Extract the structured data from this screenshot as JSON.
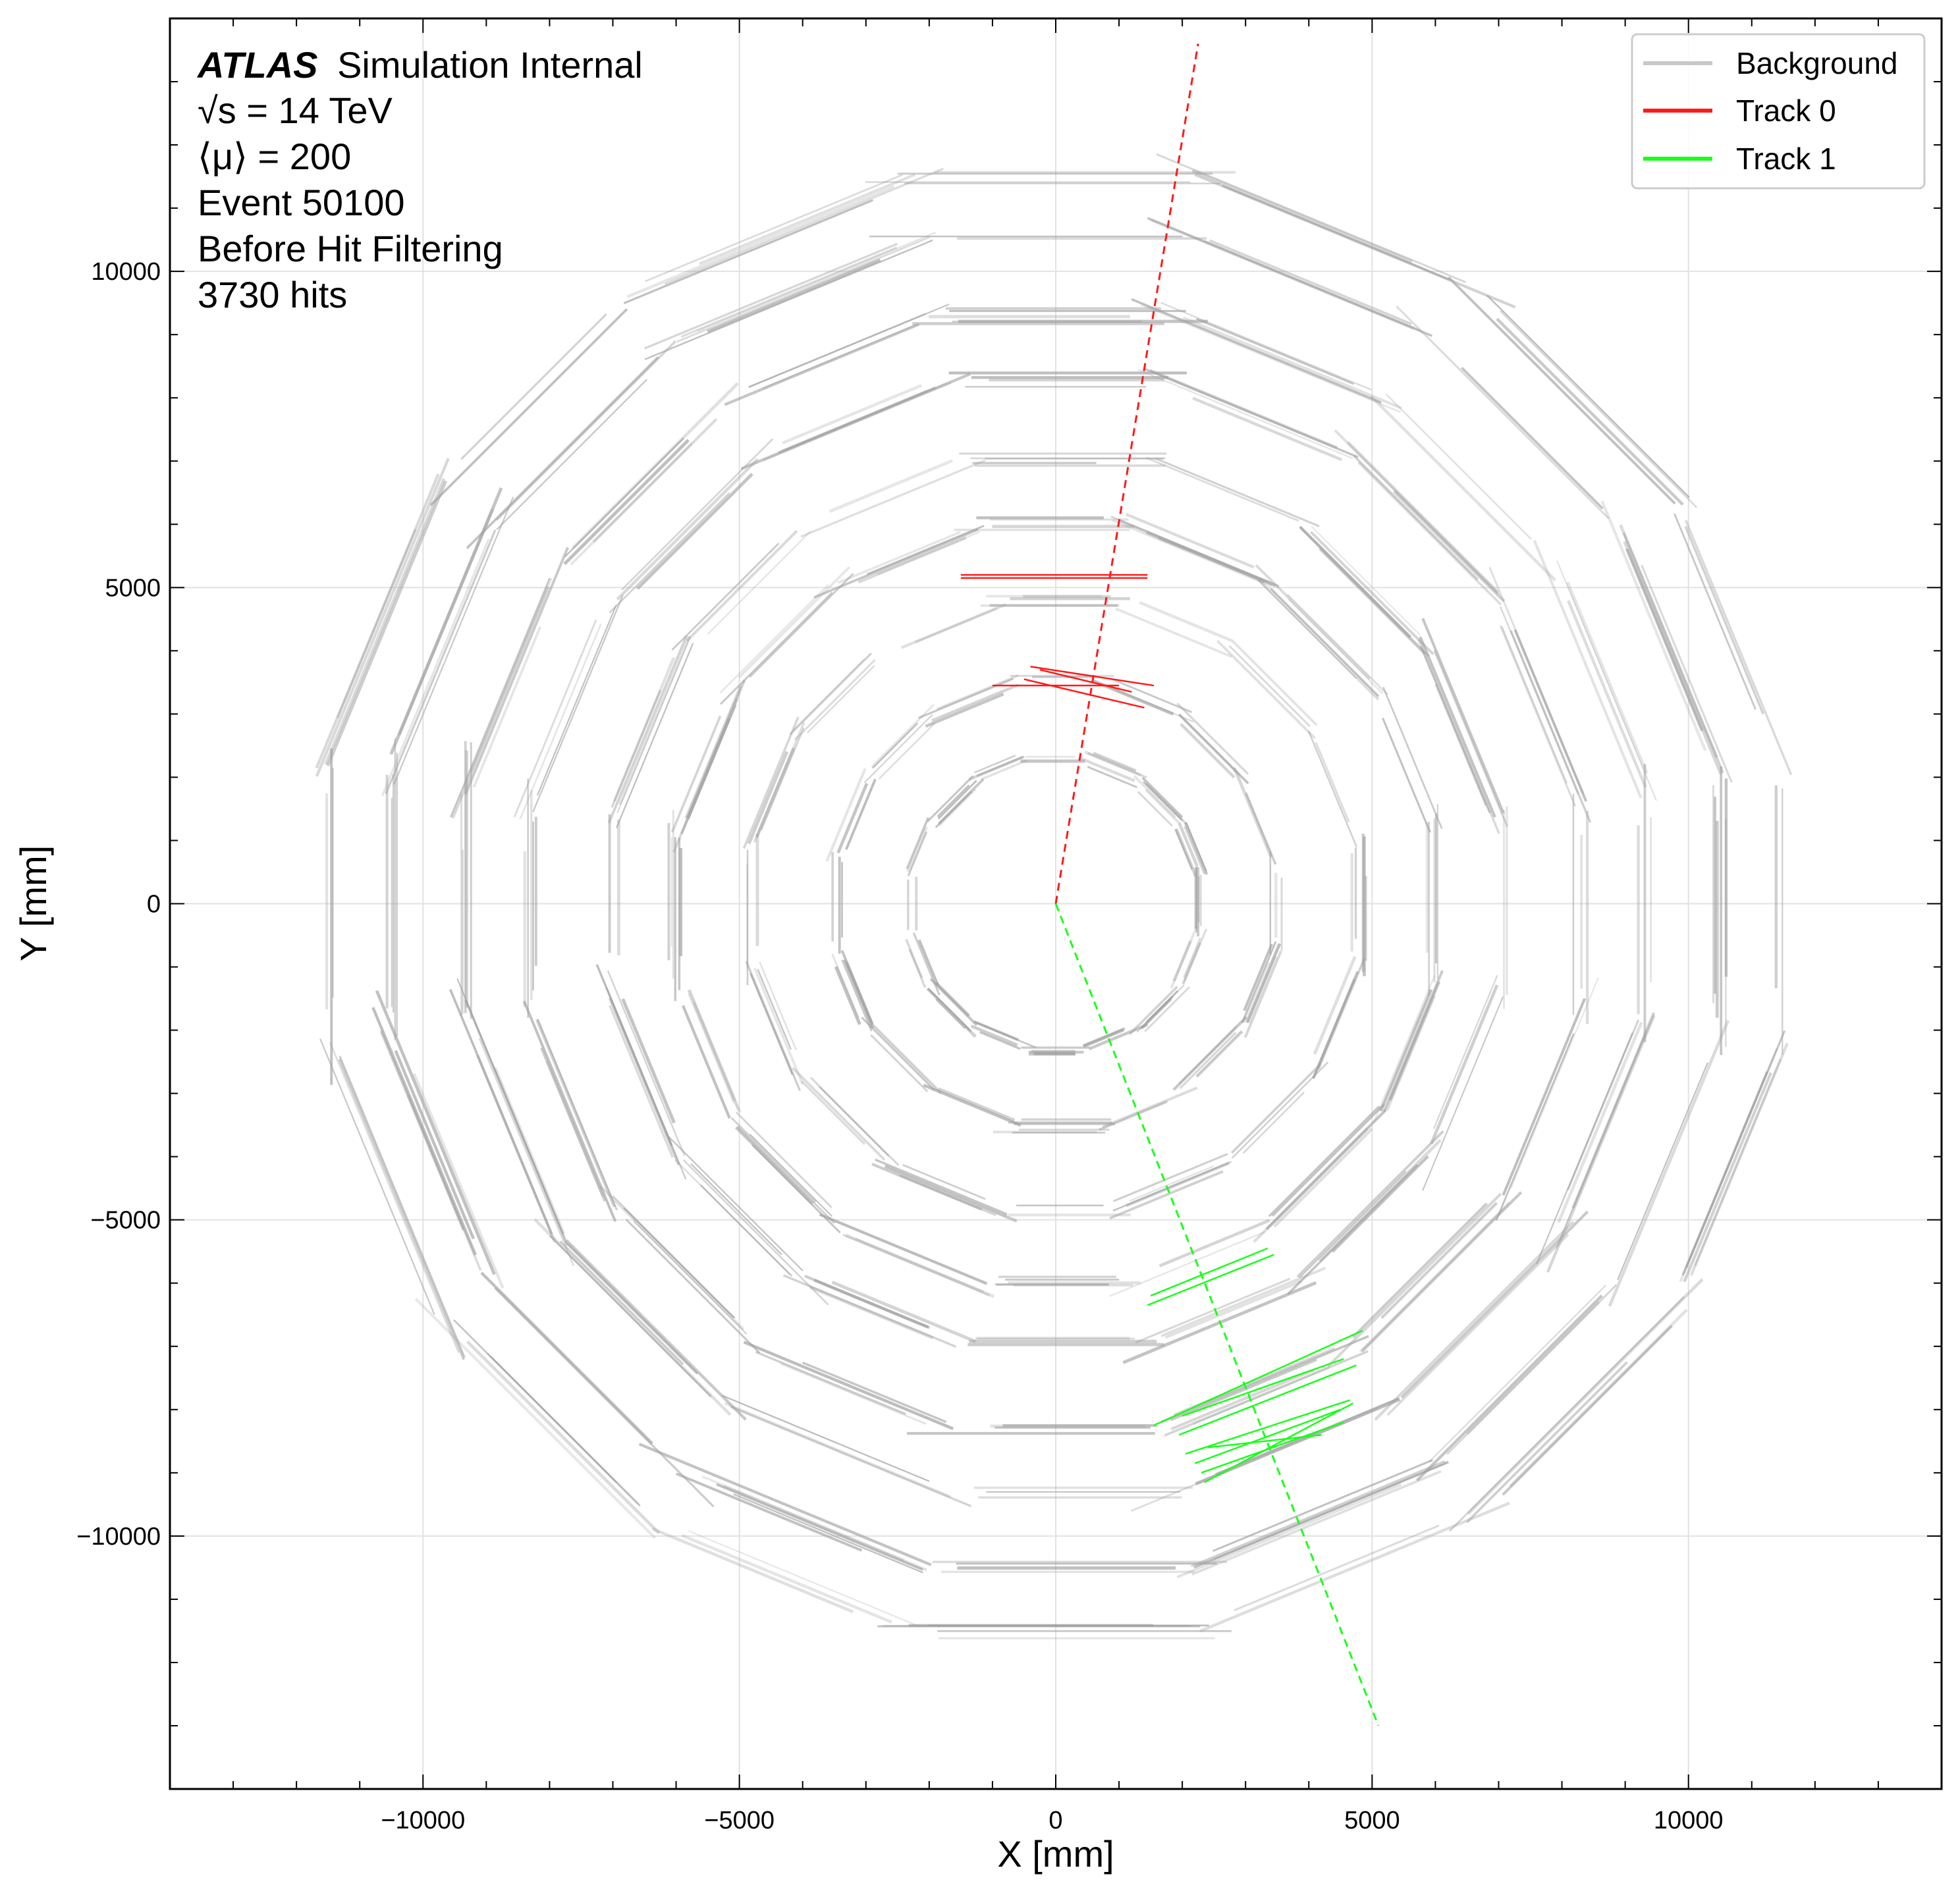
{
  "chart_data": {
    "type": "scatter",
    "title": "",
    "xlabel": "X [mm]",
    "ylabel": "Y [mm]",
    "xlim": [
      -14000,
      14000
    ],
    "ylim": [
      -14000,
      14000
    ],
    "grid": true,
    "legend_position": "top-right",
    "xticks": [
      -10000,
      -5000,
      0,
      5000,
      10000
    ],
    "yticks": [
      -10000,
      -5000,
      0,
      5000,
      10000
    ],
    "xtick_labels": [
      "−10000",
      "−5000",
      "0",
      "5000",
      "10000"
    ],
    "ytick_labels": [
      "−10000",
      "−5000",
      "0",
      "5000",
      "10000"
    ],
    "annotations": {
      "experiment": "ATLAS",
      "status": "Simulation Internal",
      "energy": "√s = 14 TeV",
      "pileup": "⟨μ⟩ = 200",
      "event": "Event 50100",
      "stage": "Before Hit Filtering",
      "hits": "3730 hits"
    },
    "legend": [
      {
        "label": "Background",
        "color": "#c8c8c8"
      },
      {
        "label": "Track 0",
        "color": "#ff1a1a"
      },
      {
        "label": "Track 1",
        "color": "#1aff1a"
      }
    ],
    "background_geometry": {
      "layer_radii": [
        2300,
        3500,
        4800,
        6000,
        7000,
        8300,
        9300,
        10500,
        11500
      ],
      "polygon_sides": 16,
      "gray_color": "#a0a0a0"
    },
    "series": [
      {
        "name": "Track 0",
        "color": "#ff1a1a",
        "trajectory": {
          "x": [
            0,
            2250
          ],
          "y": [
            0,
            13600
          ]
        },
        "hits": [
          {
            "x1": -1500,
            "y1": 5200,
            "x2": 1450,
            "y2": 5200
          },
          {
            "x1": -1500,
            "y1": 5150,
            "x2": 1450,
            "y2": 5150
          },
          {
            "x1": -1000,
            "y1": 3450,
            "x2": 1000,
            "y2": 3450
          },
          {
            "x1": -400,
            "y1": 3750,
            "x2": 1550,
            "y2": 3450
          },
          {
            "x1": -500,
            "y1": 3550,
            "x2": 1400,
            "y2": 3100
          },
          {
            "x1": -250,
            "y1": 3700,
            "x2": 1200,
            "y2": 3350
          }
        ]
      },
      {
        "name": "Track 1",
        "color": "#1aff1a",
        "trajectory": {
          "x": [
            0,
            5100
          ],
          "y": [
            0,
            -13000
          ]
        },
        "hits": [
          {
            "x1": 1450,
            "y1": -6350,
            "x2": 3450,
            "y2": -5550
          },
          {
            "x1": 1500,
            "y1": -6200,
            "x2": 3350,
            "y2": -5450
          },
          {
            "x1": 1550,
            "y1": -8250,
            "x2": 4850,
            "y2": -6750
          },
          {
            "x1": 2000,
            "y1": -8100,
            "x2": 4550,
            "y2": -7200
          },
          {
            "x1": 1950,
            "y1": -8400,
            "x2": 4750,
            "y2": -7300
          },
          {
            "x1": 2050,
            "y1": -8700,
            "x2": 4650,
            "y2": -7850
          },
          {
            "x1": 2200,
            "y1": -8850,
            "x2": 4500,
            "y2": -8000
          },
          {
            "x1": 2300,
            "y1": -9000,
            "x2": 4550,
            "y2": -8200
          },
          {
            "x1": 2350,
            "y1": -9150,
            "x2": 4700,
            "y2": -7900
          },
          {
            "x1": 2400,
            "y1": -8600,
            "x2": 4200,
            "y2": -8400
          }
        ]
      }
    ]
  }
}
